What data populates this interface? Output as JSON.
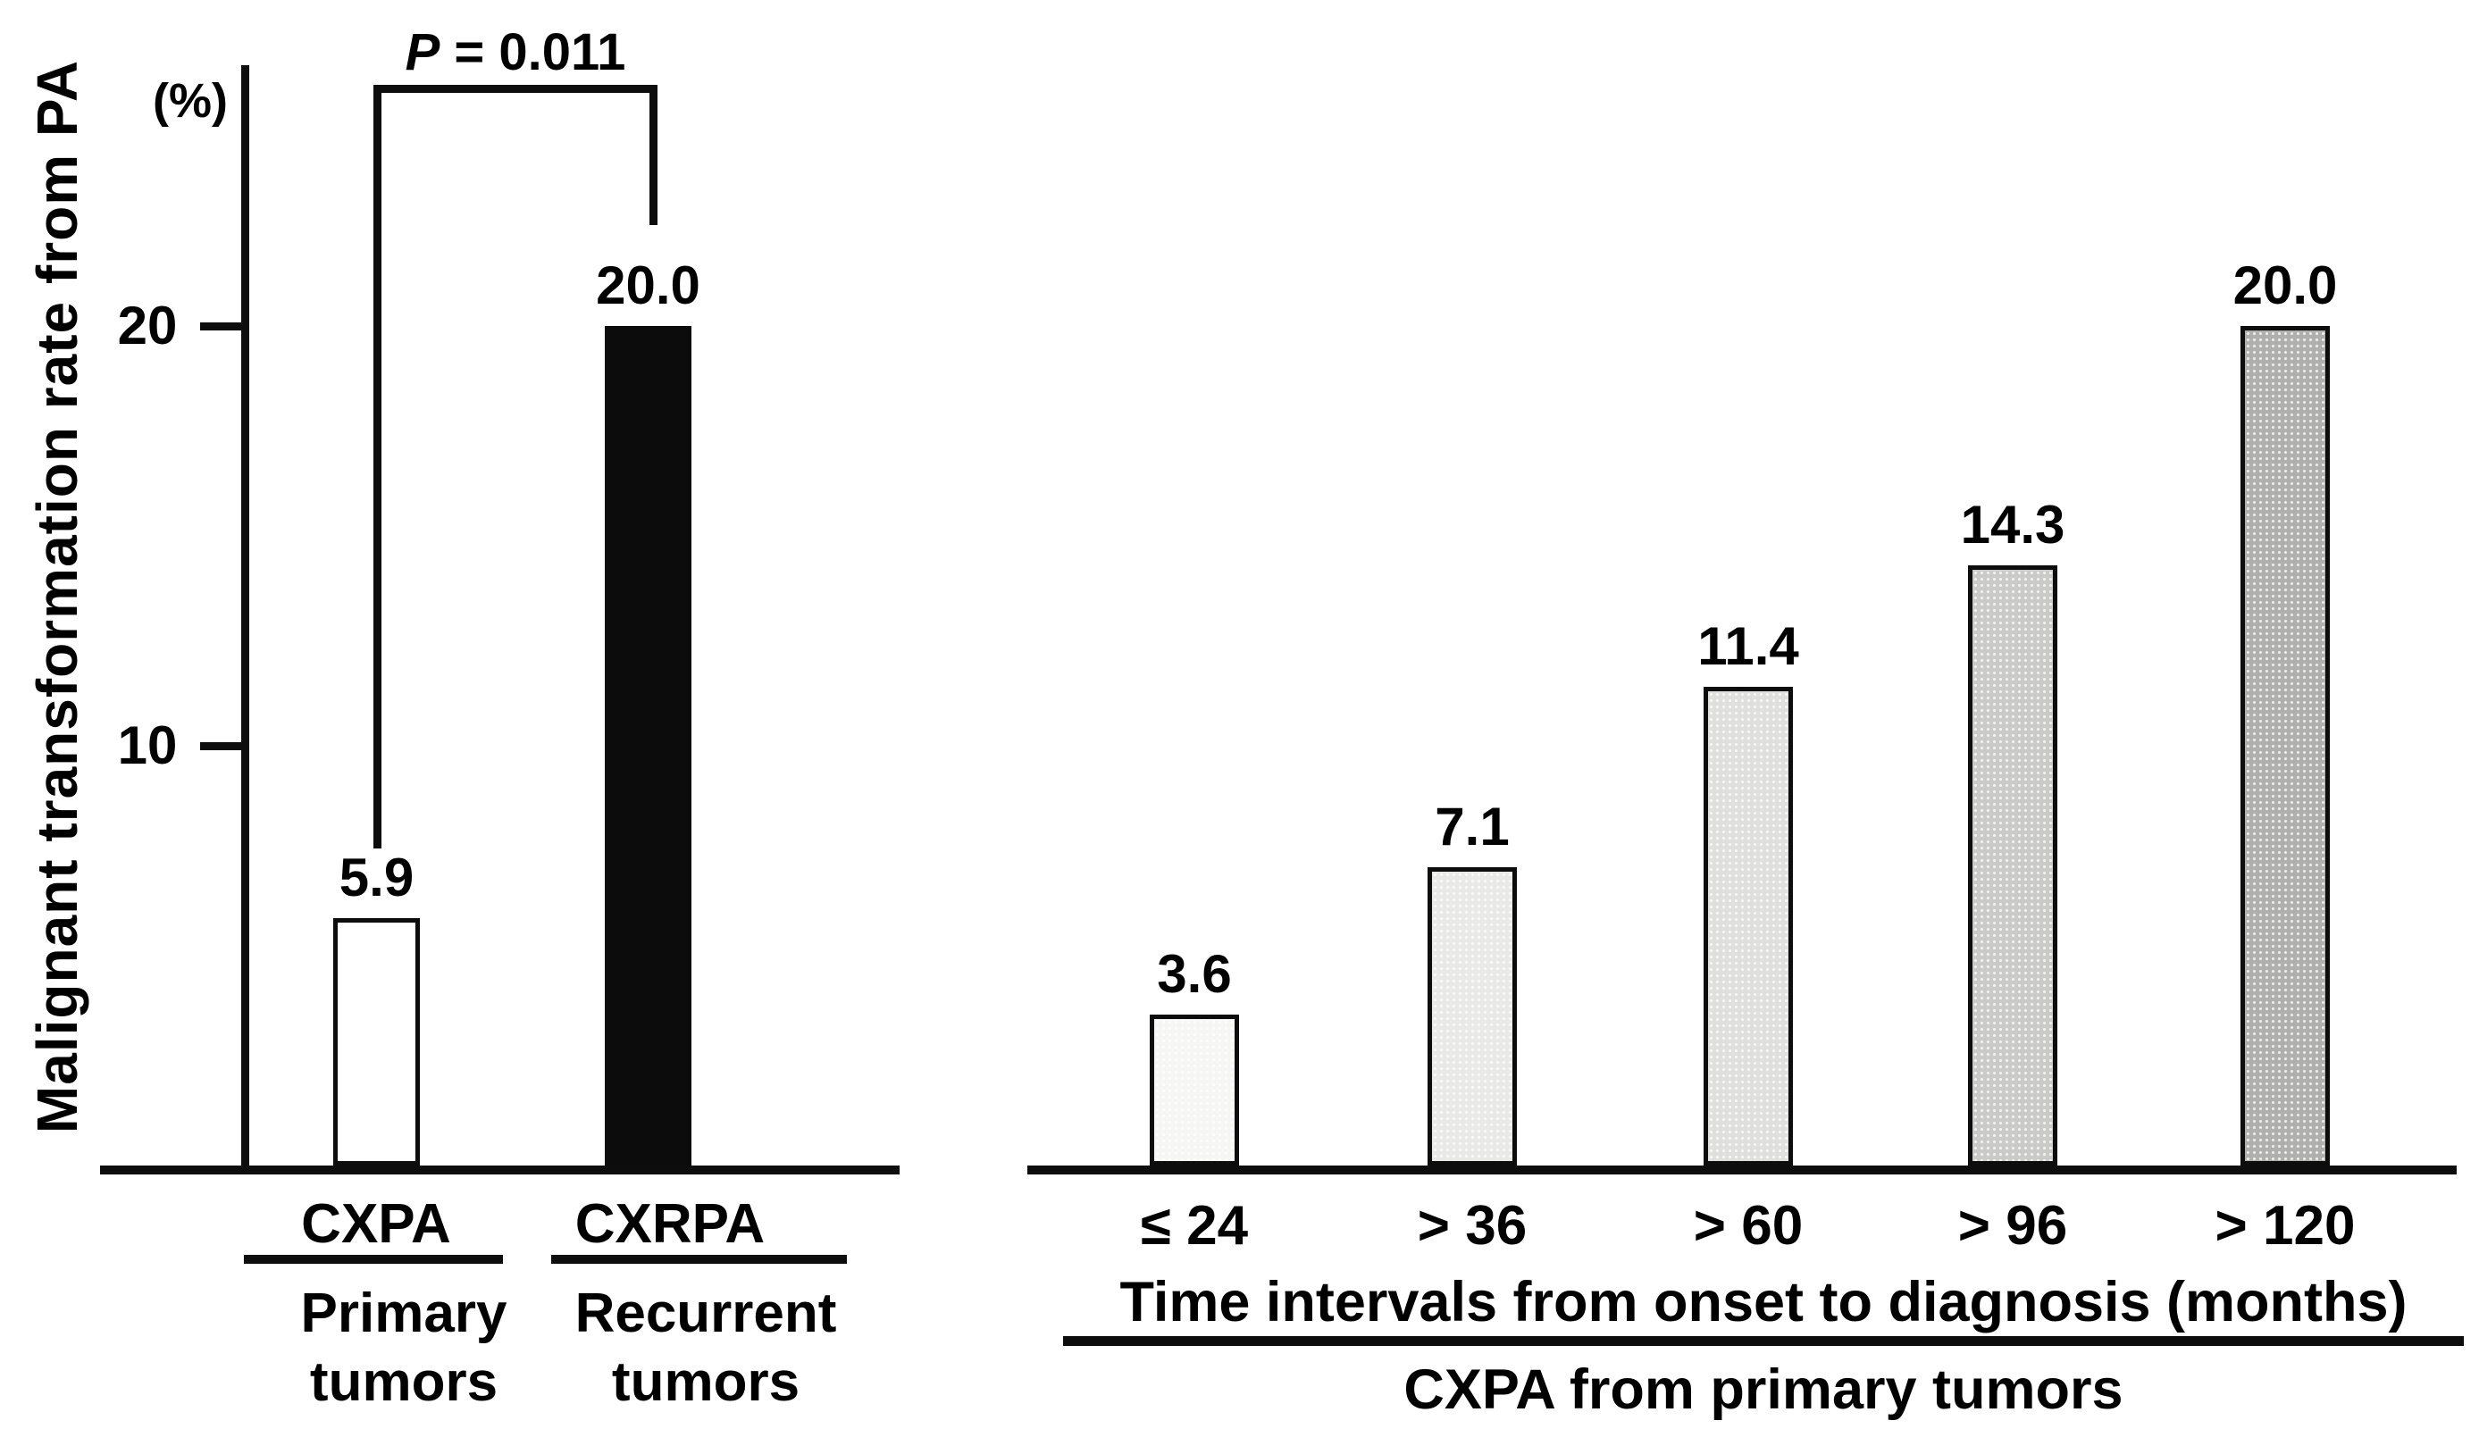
{
  "chart_data": [
    {
      "type": "bar",
      "panel": "left",
      "ylabel": "Malignant transformation rate from PA",
      "y_unit": "(%)",
      "yticks": [
        10,
        20
      ],
      "ylim": [
        0,
        26.5
      ],
      "grid": false,
      "categories": [
        "CXPA",
        "CXRPA"
      ],
      "category_sublabels": [
        [
          "Primary",
          "tumors"
        ],
        [
          "Recurrent",
          "tumors"
        ]
      ],
      "values": [
        5.9,
        20.0
      ],
      "value_labels": [
        "5.9",
        "20.0"
      ],
      "bar_colors": [
        "#ffffff",
        "#0c0c0c"
      ],
      "annotation": {
        "text": "P = 0.011",
        "p_symbol": "P",
        "p_rest": " = 0.011",
        "connects": [
          "CXPA",
          "CXRPA"
        ]
      }
    },
    {
      "type": "bar",
      "panel": "right",
      "categories": [
        "≤ 24",
        "> 36",
        "> 60",
        "> 96",
        "> 120"
      ],
      "values": [
        3.6,
        7.1,
        11.4,
        14.3,
        20.0
      ],
      "value_labels": [
        "3.6",
        "7.1",
        "11.4",
        "14.3",
        "20.0"
      ],
      "bar_colors": [
        "#f6f6f4",
        "#e9e9e7",
        "#dfdfdd",
        "#cacac8",
        "#afafad"
      ],
      "xlabel": "Time intervals from onset to diagnosis (months)",
      "xlabel2": "CXPA from primary tumors",
      "ylim": [
        0,
        26.5
      ],
      "grid": false,
      "shared_scale_with_left_panel": true
    }
  ]
}
